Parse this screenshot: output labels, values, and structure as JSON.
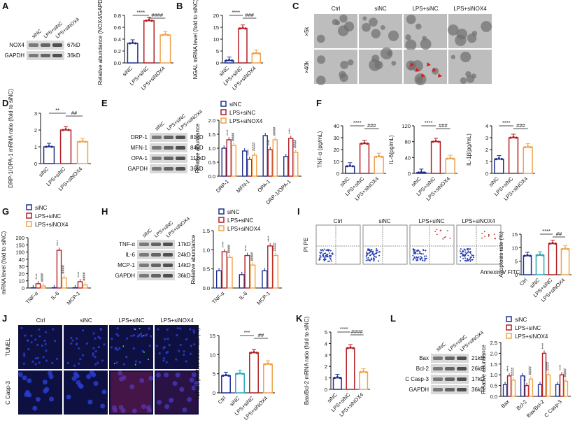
{
  "colors": {
    "siNC": "#1f2f8f",
    "lps_sinc": "#b11f24",
    "lps_sinox4": "#f0a24a",
    "axis": "#111111",
    "blot_band": "#2a2a2a",
    "blot_bg": "#d9d9d9"
  },
  "groups": [
    "siNC",
    "LPS+siNC",
    "LPS+siNOX4"
  ],
  "panels": [
    {
      "id": "A",
      "letter": "A",
      "blot": {
        "lanes": [
          "siNC",
          "LPS+siNC",
          "LPS+siNOX4"
        ],
        "rows": [
          {
            "label": "NOX4",
            "kd": "67kD"
          },
          {
            "label": "GAPDH",
            "kd": "36kD"
          }
        ]
      },
      "chart_data": {
        "type": "bar",
        "categories": [
          "siNC",
          "LPS+siNC",
          "LPS+siNOX4"
        ],
        "values": [
          0.33,
          0.71,
          0.47
        ],
        "ylabel": "Relative abundance (NOX4/GAPDH)",
        "ylim": [
          0.0,
          0.8
        ],
        "yticks": [
          "0.0",
          "0.2",
          "0.4",
          "0.6",
          "0.8"
        ],
        "sig": [
          {
            "text": "****",
            "from": 0,
            "to": 1
          },
          {
            "text": "####",
            "from": 1,
            "to": 2
          }
        ]
      }
    },
    {
      "id": "B",
      "letter": "B",
      "chart_data": {
        "type": "bar",
        "categories": [
          "siNC",
          "LPS+siNC",
          "LPS+siNOX4"
        ],
        "values": [
          1.0,
          14.5,
          4.0
        ],
        "ylabel": "NGAL mRNA level (fold to siNC)",
        "ylim": [
          0,
          20
        ],
        "yticks": [
          "0",
          "5",
          "10",
          "15",
          "20"
        ],
        "sig": [
          {
            "text": "****",
            "from": 0,
            "to": 1
          },
          {
            "text": "###",
            "from": 1,
            "to": 2
          }
        ]
      }
    },
    {
      "id": "C",
      "letter": "C",
      "em": {
        "columns": [
          "Ctrl",
          "siNC",
          "LPS+siNC",
          "LPS+siNOX4"
        ],
        "rows": [
          "×5k",
          "×40k"
        ]
      }
    },
    {
      "id": "D",
      "letter": "D",
      "chart_data": {
        "type": "bar",
        "categories": [
          "siNC",
          "LPS+siNC",
          "LPS+siNOX4"
        ],
        "values": [
          1.0,
          2.0,
          1.3
        ],
        "ylabel": "DRP-1/OPA-1 mRNA ratio (fold to siNC)",
        "ylim": [
          0,
          3
        ],
        "yticks": [
          "0",
          "1",
          "2",
          "3"
        ],
        "sig": [
          {
            "text": "**",
            "from": 0,
            "to": 1
          },
          {
            "text": "##",
            "from": 1,
            "to": 2
          }
        ]
      }
    },
    {
      "id": "E",
      "letter": "E",
      "blot": {
        "lanes": [
          "siNC",
          "LPS+siNC",
          "LPS+siNOX4"
        ],
        "rows": [
          {
            "label": "DRP-1",
            "kd": "81kD"
          },
          {
            "label": "MFN-1",
            "kd": "84kD"
          },
          {
            "label": "OPA-1",
            "kd": "111kD"
          },
          {
            "label": "GAPDH",
            "kd": "36kD"
          }
        ]
      },
      "chart_data": {
        "type": "bar",
        "categories": [
          "DRP-1",
          "MFN-1",
          "OPA-1",
          "DRP-1/OPA-1"
        ],
        "series": [
          {
            "name": "siNC",
            "values": [
              1.0,
              0.9,
              1.45,
              0.7
            ]
          },
          {
            "name": "LPS+siNC",
            "values": [
              1.3,
              0.6,
              0.95,
              1.35
            ]
          },
          {
            "name": "LPS+siNOX4",
            "values": [
              1.1,
              0.75,
              1.3,
              0.85
            ]
          }
        ],
        "ylabel": "Relative abundance",
        "ylim": [
          0.0,
          2.0
        ],
        "yticks": [
          "0.0",
          "0.5",
          "1.0",
          "1.5",
          "2.0"
        ],
        "marks": [
          "****",
          "####"
        ],
        "legend": "top-right"
      }
    },
    {
      "id": "F",
      "letter": "F",
      "charts": [
        {
          "type": "bar",
          "categories": [
            "siNC",
            "LPS+siNC",
            "LPS+siNOX4"
          ],
          "values": [
            6,
            25,
            14
          ],
          "ylabel": "TNF-α (pg/mL)",
          "ylim": [
            0,
            40
          ],
          "yticks": [
            "0",
            "10",
            "20",
            "30",
            "40"
          ],
          "sig": [
            {
              "text": "****",
              "from": 0,
              "to": 1
            },
            {
              "text": "###",
              "from": 1,
              "to": 2
            }
          ]
        },
        {
          "type": "bar",
          "categories": [
            "siNC",
            "LPS+siNC",
            "LPS+siNOX4"
          ],
          "values": [
            2,
            80,
            37
          ],
          "ylabel": "IL-6(pg/mL)",
          "ylim": [
            0,
            120
          ],
          "yticks": [
            "0",
            "40",
            "80",
            "120"
          ],
          "sig": [
            {
              "text": "****",
              "from": 0,
              "to": 1
            },
            {
              "text": "###",
              "from": 1,
              "to": 2
            }
          ]
        },
        {
          "type": "bar",
          "categories": [
            "siNC",
            "LPS+siNC",
            "LPS+siNOX4"
          ],
          "values": [
            1.2,
            3.0,
            2.2
          ],
          "ylabel": "IL-1β(pg/mL)",
          "ylim": [
            0,
            4
          ],
          "yticks": [
            "0",
            "1",
            "2",
            "3",
            "4"
          ],
          "sig": [
            {
              "text": "****",
              "from": 0,
              "to": 1
            },
            {
              "text": "###",
              "from": 1,
              "to": 2
            }
          ]
        }
      ]
    },
    {
      "id": "G",
      "letter": "G",
      "chart_data": {
        "type": "bar",
        "categories": [
          "TNF-α",
          "IL-6",
          "MCP-1"
        ],
        "series": [
          {
            "name": "siNC",
            "values": [
              1,
              1,
              1
            ]
          },
          {
            "name": "LPS+siNC",
            "values": [
              17,
              150,
              25
            ]
          },
          {
            "name": "LPS+siNOX4",
            "values": [
              8,
              40,
              12
            ]
          }
        ],
        "ylabel": "mRNA level (fold to siNC)",
        "ylim": [
          0,
          200
        ],
        "yticks": [
          "0",
          "10",
          "20",
          "30",
          "40",
          "100",
          "150",
          "200"
        ],
        "axis_break": true,
        "marks": [
          "****",
          "####"
        ],
        "legend": "top-left"
      }
    },
    {
      "id": "H",
      "letter": "H",
      "blot": {
        "lanes": [
          "siNC",
          "LPS+siNC",
          "LPS+siNOX4"
        ],
        "rows": [
          {
            "label": "TNF-α",
            "kd": "17kD"
          },
          {
            "label": "IL-6",
            "kd": "24kD"
          },
          {
            "label": "MCP-1",
            "kd": "14kD"
          },
          {
            "label": "GAPDH",
            "kd": "36kD"
          }
        ]
      },
      "chart_data": {
        "type": "bar",
        "categories": [
          "TNF-α",
          "IL-6",
          "MCP-1"
        ],
        "series": [
          {
            "name": "siNC",
            "values": [
              0.45,
              0.35,
              0.45
            ]
          },
          {
            "name": "LPS+siNC",
            "values": [
              0.95,
              0.85,
              1.1
            ]
          },
          {
            "name": "LPS+siNOX4",
            "values": [
              0.8,
              0.6,
              0.85
            ]
          }
        ],
        "ylabel": "Relative abundance",
        "ylim": [
          0.0,
          1.5
        ],
        "yticks": [
          "0.0",
          "0.5",
          "1.0",
          "1.5"
        ],
        "marks": [
          "****",
          "####"
        ],
        "legend": "top-right"
      }
    },
    {
      "id": "I",
      "letter": "I",
      "flow": {
        "columns": [
          "Ctrl",
          "siNC",
          "LPS+siNC",
          "LPS+siNOX4"
        ],
        "xlabel": "Annexin-V  FITC",
        "ylabel": "PI  PE"
      },
      "chart_data": {
        "type": "bar",
        "categories": [
          "Ctrl",
          "siNC",
          "LPS+siNC",
          "LPS+siNOX4"
        ],
        "values": [
          7.0,
          7.2,
          11.5,
          9.5
        ],
        "ylabel": "Apoptosis rate (%)",
        "ylim": [
          0,
          15
        ],
        "yticks": [
          "0",
          "5",
          "10",
          "15"
        ],
        "sig": [
          {
            "text": "****",
            "from": 1,
            "to": 2
          },
          {
            "text": "##",
            "from": 2,
            "to": 3
          }
        ]
      }
    },
    {
      "id": "J",
      "letter": "J",
      "stain": {
        "columns": [
          "Ctrl",
          "siNC",
          "LPS+siNC",
          "LPS+siNOX4"
        ],
        "rows": [
          "TUNEL",
          "C Casp-3"
        ]
      },
      "chart_data": {
        "type": "bar",
        "categories": [
          "Ctrl",
          "siNC",
          "LPS+siNC",
          "LPS+siNOX4"
        ],
        "values": [
          4.5,
          5.0,
          10.5,
          7.5
        ],
        "ylabel": "TUNEL positive cells rate (%)",
        "ylim": [
          0,
          15
        ],
        "yticks": [
          "0",
          "5",
          "10",
          "15"
        ],
        "sig": [
          {
            "text": "***",
            "from": 1,
            "to": 2
          },
          {
            "text": "##",
            "from": 2,
            "to": 3
          }
        ]
      }
    },
    {
      "id": "K",
      "letter": "K",
      "chart_data": {
        "type": "bar",
        "categories": [
          "siNC",
          "LPS+siNC",
          "LPS+siNOX4"
        ],
        "values": [
          1.0,
          3.6,
          1.5
        ],
        "ylabel": "Bax/Bcl-2 mRNA ratio (fold to siNC)",
        "ylim": [
          0,
          5
        ],
        "yticks": [
          "0",
          "1",
          "2",
          "3",
          "4",
          "5"
        ],
        "sig": [
          {
            "text": "****",
            "from": 0,
            "to": 1
          },
          {
            "text": "####",
            "from": 1,
            "to": 2
          }
        ]
      }
    },
    {
      "id": "L",
      "letter": "L",
      "blot": {
        "lanes": [
          "siNC",
          "LPS+siNC",
          "LPS+siNOX4"
        ],
        "rows": [
          {
            "label": "Bax",
            "kd": "21kD"
          },
          {
            "label": "Bcl-2",
            "kd": "26kD"
          },
          {
            "label": "C Casp-3",
            "kd": "17kD"
          },
          {
            "label": "GAPDH",
            "kd": "36kD"
          }
        ]
      },
      "chart_data": {
        "type": "bar",
        "categories": [
          "Bax",
          "Bcl-2",
          "Bax/Bcl-2",
          "C Casp-3"
        ],
        "series": [
          {
            "name": "siNC",
            "values": [
              0.55,
              0.95,
              0.55,
              0.55
            ]
          },
          {
            "name": "LPS+siNC",
            "values": [
              0.95,
              0.5,
              2.0,
              1.0
            ]
          },
          {
            "name": "LPS+siNOX4",
            "values": [
              0.75,
              0.8,
              1.0,
              0.7
            ]
          }
        ],
        "ylabel": "Relative abundance",
        "ylim": [
          0.0,
          2.5
        ],
        "yticks": [
          "0.0",
          "0.5",
          "1.0",
          "1.5",
          "2.0",
          "2.5"
        ],
        "marks": [
          "****",
          "####"
        ],
        "legend": "top-right"
      }
    }
  ]
}
